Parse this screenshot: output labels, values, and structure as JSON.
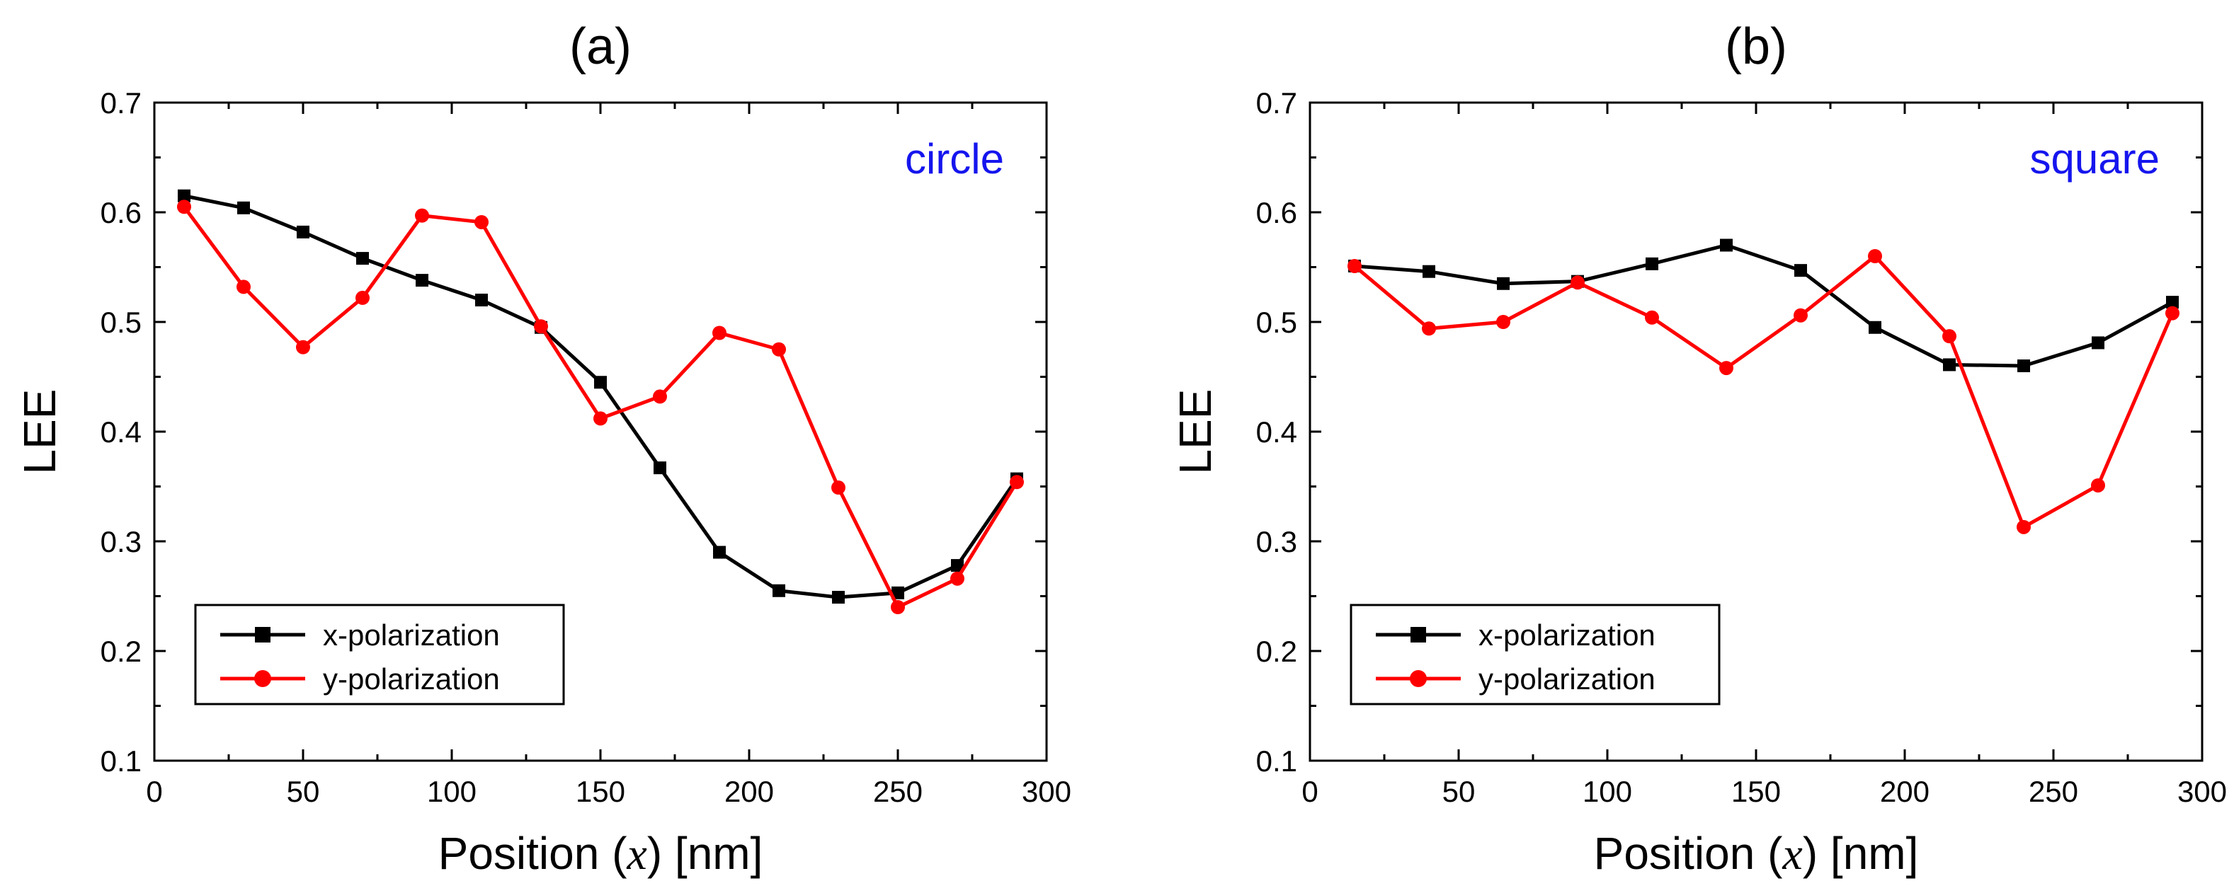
{
  "chart_data": [
    {
      "type": "line",
      "title": "(a)",
      "annotation": "circle",
      "xlabel_prefix": "Position (",
      "xlabel_var": "x",
      "xlabel_suffix": ") [nm]",
      "ylabel": "LEE",
      "xlim": [
        0,
        300
      ],
      "ylim": [
        0.1,
        0.7
      ],
      "xticks": [
        0,
        50,
        100,
        150,
        200,
        250,
        300
      ],
      "yticks": [
        0.1,
        0.2,
        0.3,
        0.4,
        0.5,
        0.6,
        0.7
      ],
      "grid": false,
      "legend_position": "bottom-left",
      "series": [
        {
          "name": "x-polarization",
          "color": "#000000",
          "marker": "square",
          "x": [
            10,
            30,
            50,
            70,
            90,
            110,
            130,
            150,
            170,
            190,
            210,
            230,
            250,
            270,
            290
          ],
          "values": [
            0.615,
            0.604,
            0.582,
            0.558,
            0.538,
            0.52,
            0.495,
            0.445,
            0.367,
            0.29,
            0.255,
            0.249,
            0.253,
            0.278,
            0.357
          ]
        },
        {
          "name": "y-polarization",
          "color": "#ff0000",
          "marker": "circle",
          "x": [
            10,
            30,
            50,
            70,
            90,
            110,
            130,
            150,
            170,
            190,
            210,
            230,
            250,
            270,
            290
          ],
          "values": [
            0.605,
            0.532,
            0.477,
            0.522,
            0.597,
            0.591,
            0.496,
            0.412,
            0.432,
            0.49,
            0.475,
            0.349,
            0.24,
            0.266,
            0.354
          ]
        }
      ]
    },
    {
      "type": "line",
      "title": "(b)",
      "annotation": "square",
      "xlabel_prefix": "Position (",
      "xlabel_var": "x",
      "xlabel_suffix": ") [nm]",
      "ylabel": "LEE",
      "xlim": [
        0,
        300
      ],
      "ylim": [
        0.1,
        0.7
      ],
      "xticks": [
        0,
        50,
        100,
        150,
        200,
        250,
        300
      ],
      "yticks": [
        0.1,
        0.2,
        0.3,
        0.4,
        0.5,
        0.6,
        0.7
      ],
      "grid": false,
      "legend_position": "bottom-left",
      "series": [
        {
          "name": "x-polarization",
          "color": "#000000",
          "marker": "square",
          "x": [
            15,
            40,
            65,
            90,
            115,
            140,
            165,
            190,
            215,
            240,
            265,
            290
          ],
          "values": [
            0.551,
            0.546,
            0.535,
            0.537,
            0.553,
            0.57,
            0.547,
            0.495,
            0.461,
            0.46,
            0.481,
            0.518
          ]
        },
        {
          "name": "y-polarization",
          "color": "#ff0000",
          "marker": "circle",
          "x": [
            15,
            40,
            65,
            90,
            115,
            140,
            165,
            190,
            215,
            240,
            265,
            290
          ],
          "values": [
            0.551,
            0.494,
            0.5,
            0.536,
            0.504,
            0.458,
            0.506,
            0.56,
            0.487,
            0.313,
            0.351,
            0.508
          ]
        }
      ]
    }
  ]
}
